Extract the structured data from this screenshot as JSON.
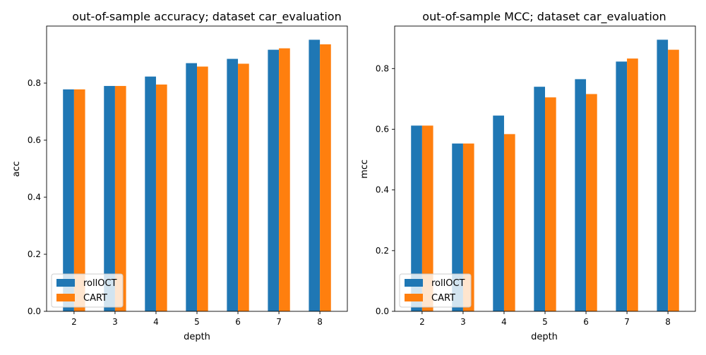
{
  "figure": {
    "legend_location": "lower-left"
  },
  "chart_data": [
    {
      "type": "bar",
      "title": "out-of-sample accuracy; dataset car_evaluation",
      "xlabel": "depth",
      "ylabel": "acc",
      "categories": [
        "2",
        "3",
        "4",
        "5",
        "6",
        "7",
        "8"
      ],
      "yticks": [
        "0.0",
        "0.2",
        "0.4",
        "0.6",
        "0.8"
      ],
      "ylim": [
        0,
        1.0
      ],
      "grid": false,
      "legend": "lower-left",
      "series": [
        {
          "name": "rollOCT",
          "color": "#1f77b4",
          "values": [
            0.778,
            0.79,
            0.823,
            0.87,
            0.885,
            0.917,
            0.952
          ]
        },
        {
          "name": "CART",
          "color": "#ff7f0e",
          "values": [
            0.778,
            0.79,
            0.795,
            0.858,
            0.868,
            0.922,
            0.936
          ]
        }
      ]
    },
    {
      "type": "bar",
      "title": "out-of-sample MCC; dataset car_evaluation",
      "xlabel": "depth",
      "ylabel": "mcc",
      "categories": [
        "2",
        "3",
        "4",
        "5",
        "6",
        "7",
        "8"
      ],
      "yticks": [
        "0.0",
        "0.2",
        "0.4",
        "0.6",
        "0.8"
      ],
      "ylim": [
        0,
        0.94
      ],
      "grid": false,
      "legend": "lower-left",
      "series": [
        {
          "name": "rollOCT",
          "color": "#1f77b4",
          "values": [
            0.612,
            0.553,
            0.645,
            0.74,
            0.765,
            0.823,
            0.895
          ]
        },
        {
          "name": "CART",
          "color": "#ff7f0e",
          "values": [
            0.612,
            0.553,
            0.584,
            0.705,
            0.716,
            0.833,
            0.862
          ]
        }
      ]
    }
  ]
}
